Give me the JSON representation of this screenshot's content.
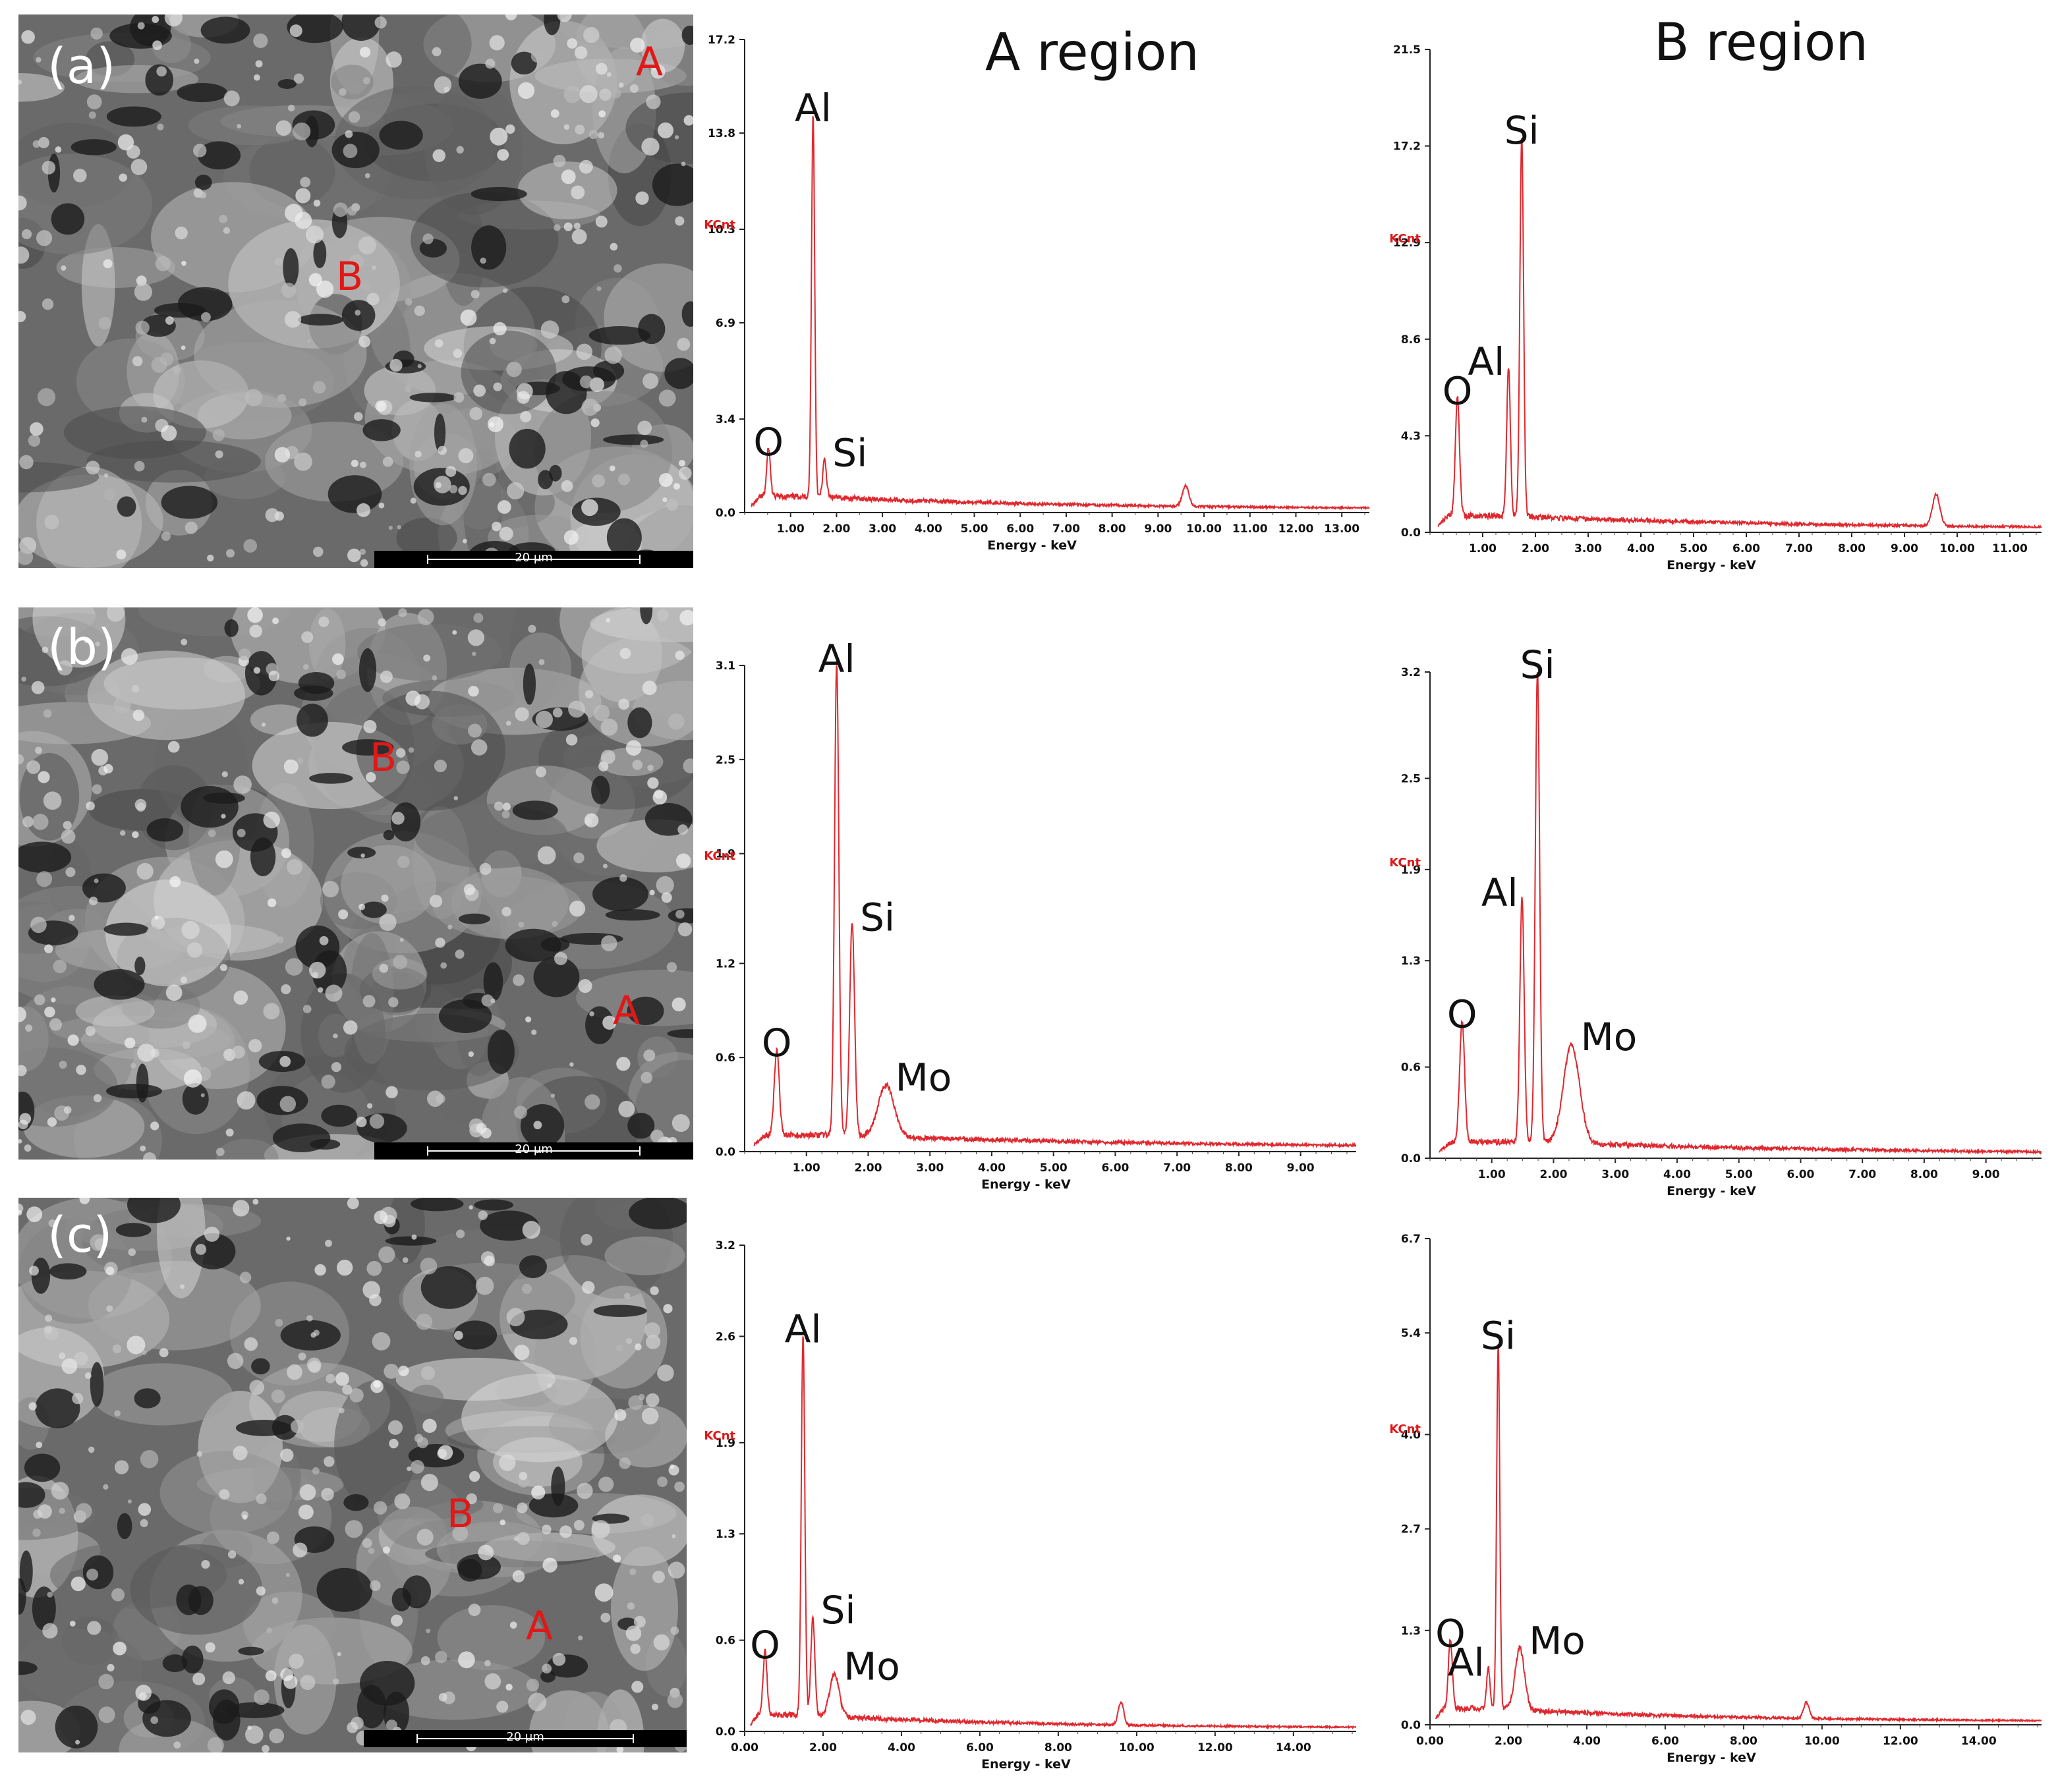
{
  "column_titles": {
    "a_region": "A region",
    "b_region": "B region"
  },
  "panels": [
    {
      "label": "(a)",
      "marks": {
        "a": "A",
        "b": "B"
      },
      "scale_text": "20 μm"
    },
    {
      "label": "(b)",
      "marks": {
        "a": "A",
        "b": "B"
      },
      "scale_text": "20 μm"
    },
    {
      "label": "(c)",
      "marks": {
        "a": "A",
        "b": "B"
      },
      "scale_text": "20 μm"
    }
  ],
  "chart_data": [
    {
      "id": "a-A",
      "type": "line",
      "title": "A region",
      "xlabel": "Energy - keV",
      "ylabel": "KCnt",
      "xlim": [
        0,
        13.6
      ],
      "ylim": [
        0,
        17.2
      ],
      "x_ticks": [
        "1.00",
        "2.00",
        "3.00",
        "4.00",
        "5.00",
        "6.00",
        "7.00",
        "8.00",
        "9.00",
        "10.00",
        "11.00",
        "12.00",
        "13.00"
      ],
      "y_ticks": [
        "0.0",
        "3.4",
        "6.9",
        "10.3",
        "13.8",
        "17.2"
      ],
      "peaks": [
        {
          "element": "O",
          "energy": 0.52,
          "value": 1.75,
          "width": 0.04
        },
        {
          "element": "Al",
          "energy": 1.49,
          "value": 13.9,
          "width": 0.035
        },
        {
          "element": "Si",
          "energy": 1.74,
          "value": 1.35,
          "width": 0.04
        },
        {
          "element": "",
          "energy": 9.6,
          "value": 0.75,
          "width": 0.07
        }
      ]
    },
    {
      "id": "a-B",
      "type": "line",
      "title": "B region",
      "xlabel": "Energy - keV",
      "ylabel": "KCnt",
      "xlim": [
        0,
        11.6
      ],
      "ylim": [
        0,
        21.5
      ],
      "x_ticks": [
        "1.00",
        "2.00",
        "3.00",
        "4.00",
        "5.00",
        "6.00",
        "7.00",
        "8.00",
        "9.00",
        "10.00",
        "11.00"
      ],
      "y_ticks": [
        "0.0",
        "4.3",
        "8.6",
        "12.9",
        "17.2",
        "21.5"
      ],
      "peaks": [
        {
          "element": "O",
          "energy": 0.52,
          "value": 5.3,
          "width": 0.04
        },
        {
          "element": "Al",
          "energy": 1.49,
          "value": 6.6,
          "width": 0.035
        },
        {
          "element": "Si",
          "energy": 1.74,
          "value": 16.9,
          "width": 0.035
        },
        {
          "element": "",
          "energy": 9.6,
          "value": 1.4,
          "width": 0.07
        }
      ]
    },
    {
      "id": "b-A",
      "type": "line",
      "xlabel": "Energy - keV",
      "ylabel": "KCnt",
      "xlim": [
        0,
        9.9
      ],
      "ylim": [
        0,
        3.1
      ],
      "x_ticks": [
        "1.00",
        "2.00",
        "3.00",
        "4.00",
        "5.00",
        "6.00",
        "7.00",
        "8.00",
        "9.00"
      ],
      "y_ticks": [
        "0.0",
        "0.6",
        "1.2",
        "1.9",
        "2.5",
        "3.1"
      ],
      "peaks": [
        {
          "element": "O",
          "energy": 0.52,
          "value": 0.55,
          "width": 0.04
        },
        {
          "element": "Al",
          "energy": 1.49,
          "value": 3.0,
          "width": 0.035
        },
        {
          "element": "Si",
          "energy": 1.74,
          "value": 1.35,
          "width": 0.04
        },
        {
          "element": "Mo",
          "energy": 2.29,
          "value": 0.33,
          "width": 0.13
        }
      ]
    },
    {
      "id": "b-B",
      "type": "line",
      "xlabel": "Energy - keV",
      "ylabel": "KCnt",
      "xlim": [
        0,
        9.9
      ],
      "ylim": [
        0,
        3.2
      ],
      "x_ticks": [
        "1.00",
        "2.00",
        "3.00",
        "4.00",
        "5.00",
        "6.00",
        "7.00",
        "8.00",
        "9.00"
      ],
      "y_ticks": [
        "0.0",
        "0.6",
        "1.3",
        "1.9",
        "2.5",
        "3.2"
      ],
      "peaks": [
        {
          "element": "O",
          "energy": 0.52,
          "value": 0.8,
          "width": 0.04
        },
        {
          "element": "Al",
          "energy": 1.49,
          "value": 1.6,
          "width": 0.035
        },
        {
          "element": "Si",
          "energy": 1.74,
          "value": 3.1,
          "width": 0.035
        },
        {
          "element": "Mo",
          "energy": 2.29,
          "value": 0.65,
          "width": 0.13
        }
      ]
    },
    {
      "id": "c-A",
      "type": "line",
      "xlabel": "Energy - keV",
      "ylabel": "KCnt",
      "xlim": [
        0,
        15.6
      ],
      "ylim": [
        0,
        3.2
      ],
      "x_ticks": [
        "0.00",
        "2.00",
        "4.00",
        "6.00",
        "8.00",
        "10.00",
        "12.00",
        "14.00"
      ],
      "y_ticks": [
        "0.0",
        "0.6",
        "1.3",
        "1.9",
        "2.6",
        "3.2"
      ],
      "peaks": [
        {
          "element": "O",
          "energy": 0.52,
          "value": 0.42,
          "width": 0.05
        },
        {
          "element": "Al",
          "energy": 1.49,
          "value": 2.5,
          "width": 0.045
        },
        {
          "element": "Si",
          "energy": 1.74,
          "value": 0.65,
          "width": 0.05
        },
        {
          "element": "Mo",
          "energy": 2.29,
          "value": 0.28,
          "width": 0.12
        },
        {
          "element": "",
          "energy": 9.6,
          "value": 0.15,
          "width": 0.07
        }
      ]
    },
    {
      "id": "c-B",
      "type": "line",
      "xlabel": "Energy - keV",
      "ylabel": "KCnt",
      "xlim": [
        0,
        15.6
      ],
      "ylim": [
        0,
        6.7
      ],
      "x_ticks": [
        "0.00",
        "2.00",
        "4.00",
        "6.00",
        "8.00",
        "10.00",
        "12.00",
        "14.00"
      ],
      "y_ticks": [
        "0.0",
        "1.3",
        "2.7",
        "4.0",
        "5.4",
        "6.7"
      ],
      "peaks": [
        {
          "element": "O",
          "energy": 0.52,
          "value": 0.95,
          "width": 0.05
        },
        {
          "element": "Al",
          "energy": 1.49,
          "value": 0.55,
          "width": 0.045
        },
        {
          "element": "Si",
          "energy": 1.74,
          "value": 5.05,
          "width": 0.04
        },
        {
          "element": "Mo",
          "energy": 2.29,
          "value": 0.85,
          "width": 0.12
        },
        {
          "element": "",
          "energy": 9.6,
          "value": 0.22,
          "width": 0.07
        }
      ]
    }
  ]
}
